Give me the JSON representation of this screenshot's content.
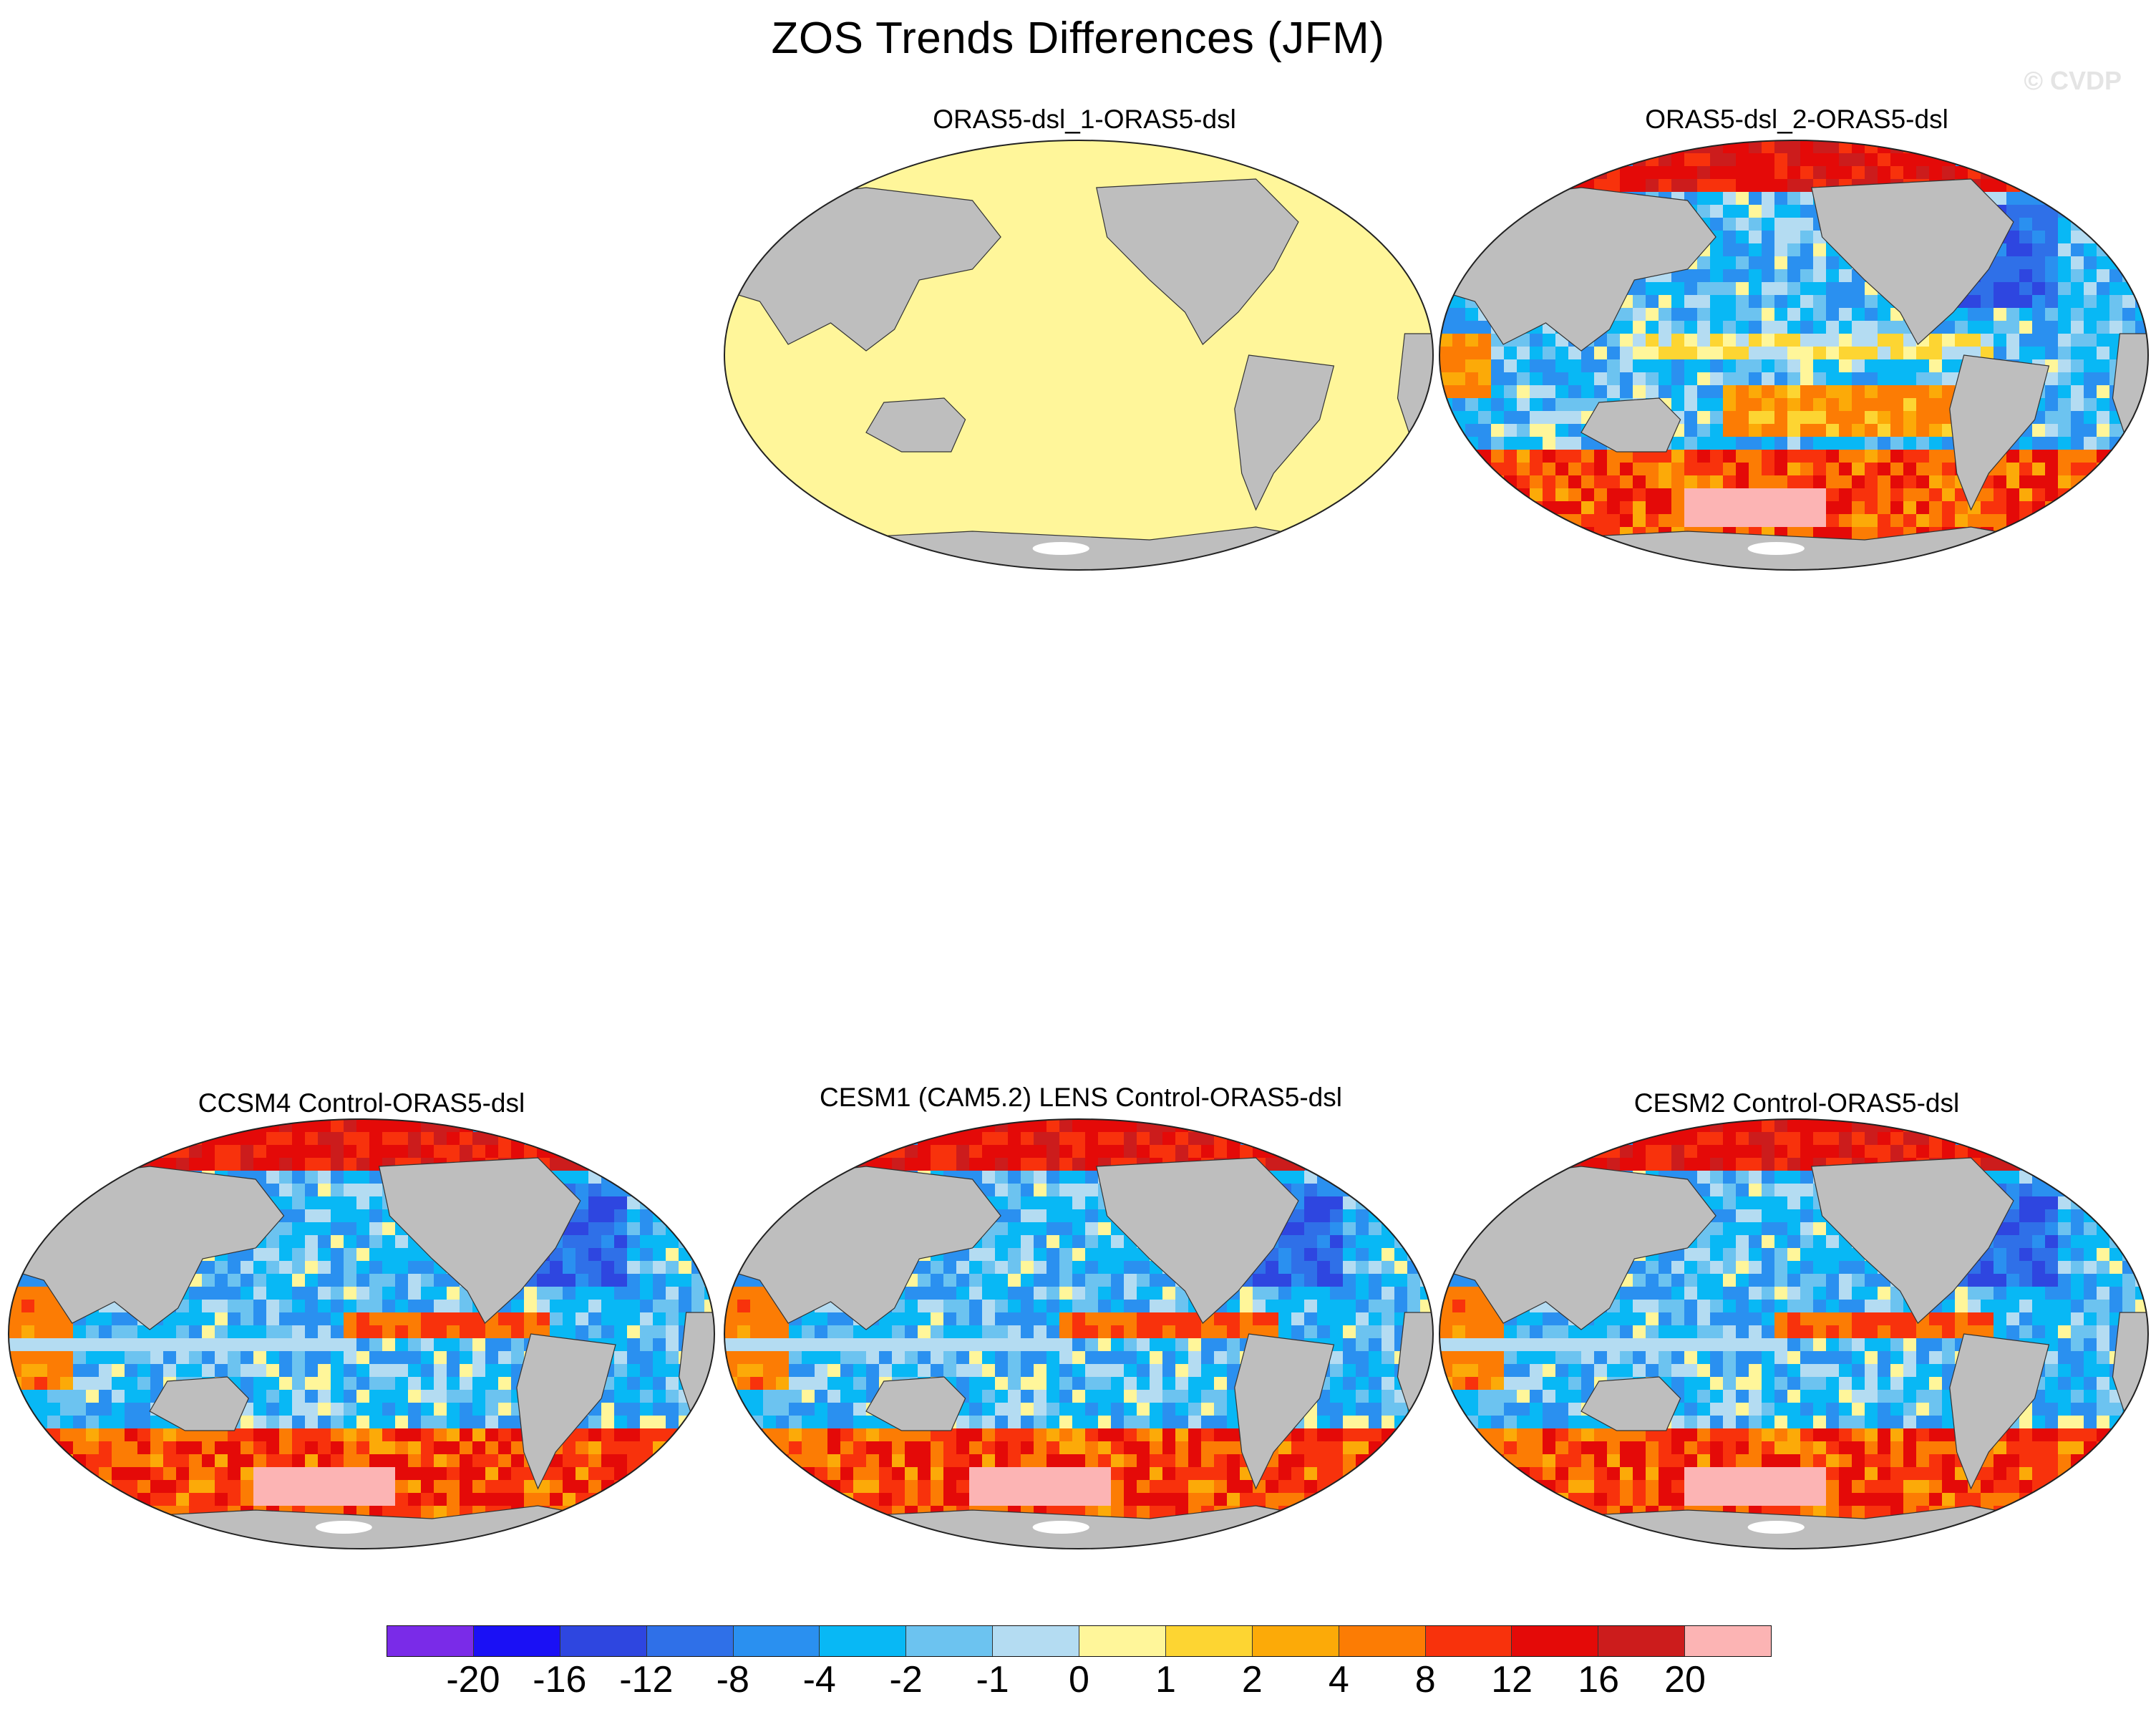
{
  "title": "ZOS Trends Differences (JFM)",
  "watermark": "© CVDP",
  "panels": [
    {
      "title": "ORAS5-dsl_1-ORAS5-dsl",
      "field": "uniform_zero"
    },
    {
      "title": "ORAS5-dsl_2-ORAS5-dsl",
      "field": "patterned_a"
    },
    {
      "title": "CCSM4 Control-ORAS5-dsl",
      "field": "patterned_b"
    },
    {
      "title": "CESM1 (CAM5.2) LENS Control-ORAS5-dsl",
      "field": "patterned_b"
    },
    {
      "title": "CESM2 Control-ORAS5-dsl",
      "field": "patterned_b"
    }
  ],
  "colorbar": {
    "levels": [
      "-20",
      "-16",
      "-12",
      "-8",
      "-4",
      "-2",
      "-1",
      "0",
      "1",
      "2",
      "4",
      "8",
      "12",
      "16",
      "20"
    ],
    "colors": [
      "#7a2be8",
      "#1a10f5",
      "#2e46e0",
      "#2f70e8",
      "#2a90f0",
      "#08b8f5",
      "#6cc3f0",
      "#b4dcf2",
      "#fff69a",
      "#fdd532",
      "#fcaa08",
      "#fc7c04",
      "#f8320c",
      "#e40a08",
      "#cc1c1c",
      "#fcb4b4"
    ]
  },
  "land_color": "#bebebe",
  "ice_color": "#ffffff"
}
